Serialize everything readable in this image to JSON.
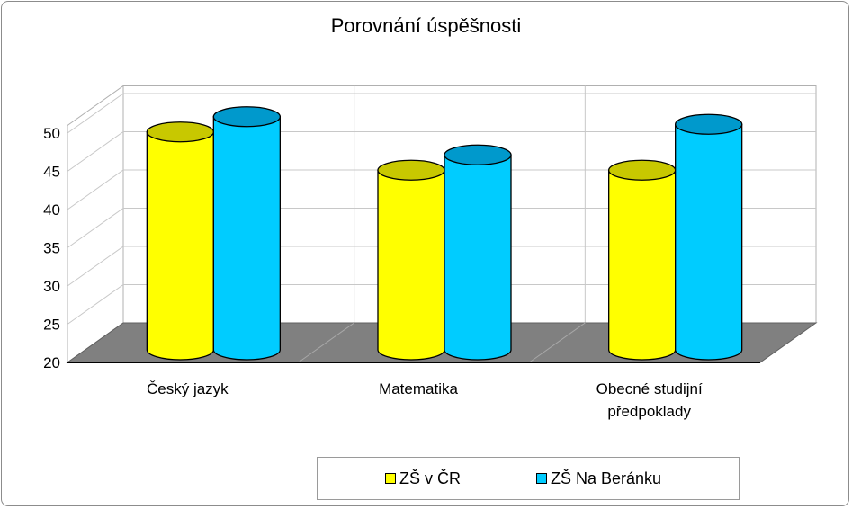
{
  "chart_data": {
    "type": "bar",
    "title": "Porovnání úspěšnosti",
    "categories": [
      [
        "Český jazyk"
      ],
      [
        "Matematika"
      ],
      [
        "Obecné studijní",
        "předpoklady"
      ]
    ],
    "series": [
      {
        "name": "ZŠ v ČR",
        "values": [
          48.5,
          43.5,
          43.5
        ],
        "color": "#FFFF00",
        "shade": "#C8C800"
      },
      {
        "name": "ZŠ Na Beránku",
        "values": [
          50.5,
          45.5,
          49.5
        ],
        "color": "#00CCFF",
        "shade": "#0099CC"
      }
    ],
    "yticks": [
      20,
      25,
      30,
      35,
      40,
      45,
      50
    ],
    "ylim": [
      20,
      51
    ],
    "grid": true,
    "legend": "bottom",
    "shape": "cylinder-3d",
    "floor_color": "#808080"
  }
}
